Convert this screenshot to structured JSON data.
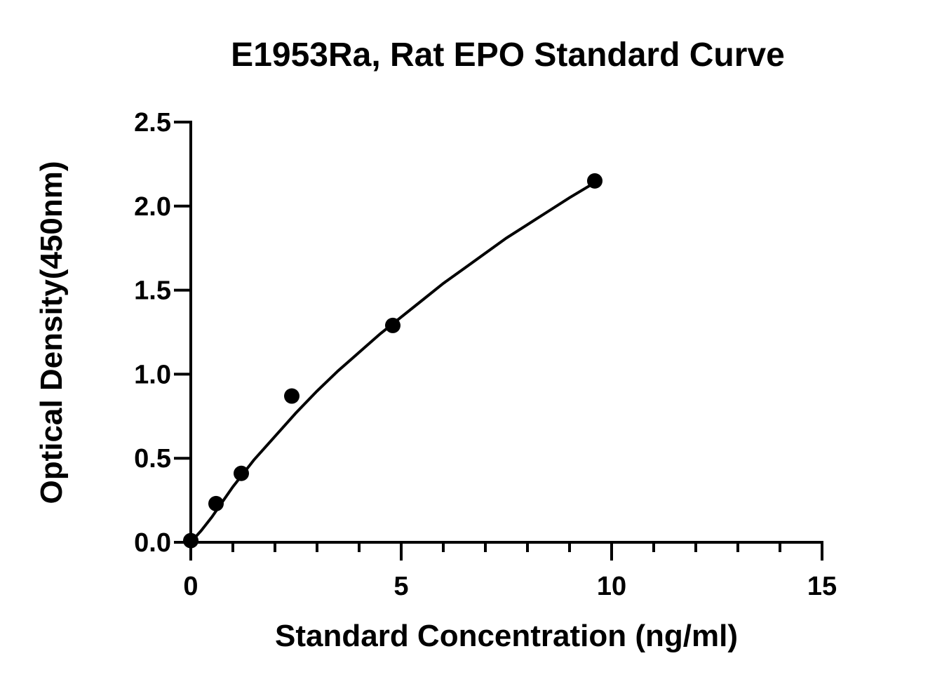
{
  "chart_data": {
    "type": "scatter",
    "title": "E1953Ra, Rat EPO Standard Curve",
    "xlabel": "Standard Concentration (ng/ml)",
    "ylabel": "Optical Density(450nm)",
    "xlim": [
      0,
      15
    ],
    "ylim": [
      0,
      2.5
    ],
    "x_ticks": [
      0,
      5,
      10,
      15
    ],
    "x_tick_labels": [
      "0",
      "5",
      "10",
      "15"
    ],
    "x_minor_step": 1,
    "y_ticks": [
      0,
      0.5,
      1.0,
      1.5,
      2.0,
      2.5
    ],
    "y_tick_labels": [
      "0.0",
      "0.5",
      "1.0",
      "1.5",
      "2.0",
      "2.5"
    ],
    "grid": false,
    "legend": "none",
    "series": [
      {
        "x": [
          0,
          0.6,
          1.2,
          2.4,
          4.8,
          9.6
        ],
        "y": [
          0.01,
          0.23,
          0.41,
          0.87,
          1.29,
          2.15
        ]
      }
    ],
    "fit_curve": {
      "x": [
        0,
        0.25,
        0.5,
        0.75,
        1,
        1.5,
        2,
        2.5,
        3,
        3.5,
        4,
        4.5,
        5,
        5.5,
        6,
        6.5,
        7,
        7.5,
        8,
        8.5,
        9,
        9.6
      ],
      "y": [
        0,
        0.07,
        0.15,
        0.24,
        0.33,
        0.49,
        0.63,
        0.77,
        0.9,
        1.02,
        1.13,
        1.24,
        1.34,
        1.44,
        1.54,
        1.63,
        1.72,
        1.81,
        1.89,
        1.97,
        2.05,
        2.14
      ]
    },
    "colors": {
      "points": "#000000",
      "curve": "#000000",
      "axes": "#000000"
    }
  }
}
